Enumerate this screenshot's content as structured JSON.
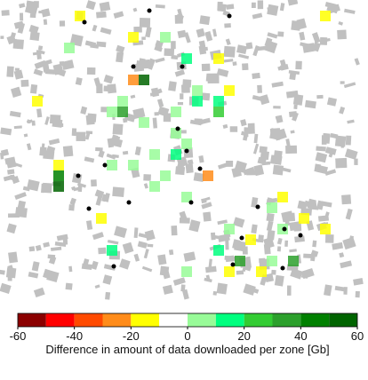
{
  "chart_data": {
    "type": "map",
    "colorbar": {
      "label": "Difference in amount of data downloaded per zone [Gb]",
      "bounds": [
        -60,
        -50,
        -40,
        -30,
        -20,
        -10,
        0,
        10,
        20,
        30,
        40,
        50,
        60
      ],
      "colors": [
        "#8b0000",
        "#ff0000",
        "#ff4a00",
        "#ff8c1a",
        "#ffff00",
        "#ffffff",
        "#98fb98",
        "#00ff7f",
        "#33cc33",
        "#2ca02c",
        "#008000",
        "#006400"
      ],
      "ticks": [
        -60,
        -40,
        -20,
        0,
        20,
        40,
        60
      ]
    },
    "zones": {
      "col": [
        7,
        30,
        12,
        15,
        20,
        17,
        6,
        12,
        13,
        3,
        11,
        11,
        10,
        18,
        18,
        20,
        20,
        21,
        16,
        13,
        16,
        17,
        16,
        14,
        19,
        5,
        5,
        5,
        10,
        12,
        15,
        14,
        17,
        26,
        25,
        9,
        28,
        30,
        21,
        26,
        23,
        10,
        20,
        22,
        25,
        27,
        21,
        17,
        24
      ],
      "row": [
        1,
        1,
        3,
        3,
        5,
        5,
        4,
        7,
        7,
        9,
        9,
        10,
        10,
        8,
        9,
        9,
        10,
        8,
        10,
        11,
        12,
        13,
        14,
        14,
        16,
        15,
        16,
        17,
        15,
        15,
        16,
        17,
        18,
        18,
        19,
        20,
        20,
        21,
        21,
        21,
        22,
        23,
        23,
        24,
        24,
        24,
        25,
        25,
        25
      ],
      "values": [
        -15,
        -15,
        -15,
        5,
        -15,
        15,
        5,
        -25,
        50,
        -15,
        5,
        35,
        5,
        5,
        15,
        15,
        25,
        -15,
        5,
        5,
        5,
        5,
        15,
        5,
        -25,
        -15,
        40,
        50,
        5,
        5,
        5,
        5,
        5,
        -15,
        5,
        -15,
        -15,
        -15,
        5,
        5,
        -15,
        15,
        15,
        35,
        5,
        35,
        -15,
        5,
        -15
      ]
    }
  }
}
